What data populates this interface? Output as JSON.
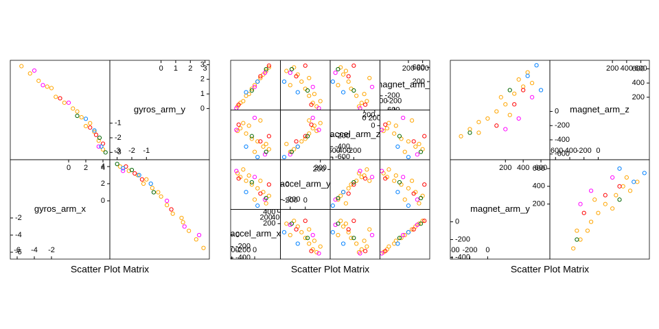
{
  "chart_data": [
    {
      "type": "splom",
      "xlabel": "Scatter Plot Matrix",
      "variables": [
        {
          "name": "gyros_arm_x",
          "lim": [
            -6.8,
            4.8
          ],
          "ticks": [
            -6,
            -4,
            -2,
            0,
            2,
            4
          ]
        },
        {
          "name": "gyros_arm_y",
          "lim": [
            -3.5,
            3.3
          ],
          "ticks": [
            -3,
            -2,
            -1,
            0,
            1,
            2,
            3
          ]
        }
      ],
      "series": [
        {
          "color": "#ffa500",
          "values": [
            [
              -5.5,
              2.9
            ],
            [
              -4.5,
              2.4
            ],
            [
              -3.5,
              1.9
            ],
            [
              -2.5,
              1.5
            ],
            [
              -1.5,
              0.8
            ],
            [
              -0.5,
              0.4
            ],
            [
              0.5,
              0
            ],
            [
              1.5,
              -0.6
            ],
            [
              2.5,
              -1
            ],
            [
              3,
              -1.6
            ],
            [
              3.5,
              -2.2
            ],
            [
              4,
              -2.8
            ],
            [
              -2,
              1.4
            ],
            [
              1,
              -0.2
            ],
            [
              2,
              -1.2
            ]
          ]
        },
        {
          "color": "#ff0000",
          "values": [
            [
              2.5,
              -1.3
            ],
            [
              3.2,
              -1.8
            ],
            [
              -1,
              0.7
            ],
            [
              4,
              -2.4
            ]
          ]
        },
        {
          "color": "#ff00ff",
          "values": [
            [
              -4,
              2.6
            ],
            [
              -3,
              1.6
            ],
            [
              3.5,
              -2.6
            ],
            [
              0,
              0.4
            ]
          ]
        },
        {
          "color": "#0080ff",
          "values": [
            [
              2,
              -0.7
            ],
            [
              3,
              -1.5
            ],
            [
              3.8,
              -2.6
            ]
          ]
        },
        {
          "color": "#006400",
          "values": [
            [
              4.3,
              -3
            ],
            [
              3.6,
              -2
            ],
            [
              1,
              -0.5
            ]
          ]
        }
      ]
    },
    {
      "type": "splom",
      "xlabel": "Scatter Plot Matrix",
      "variables": [
        {
          "name": "accel_arm_x",
          "lim": [
            -420,
            450
          ],
          "ticks": [
            -400,
            -200,
            0,
            200,
            400
          ]
        },
        {
          "name": "accel_arm_y",
          "lim": [
            -330,
            330
          ],
          "ticks": [
            -200,
            0,
            200
          ]
        },
        {
          "name": "accel_arm_z",
          "lim": [
            -650,
            300
          ],
          "ticks": [
            -600,
            -400,
            -200,
            0,
            200
          ]
        },
        {
          "name": "magnet_arm_x",
          "lim": [
            -600,
            800
          ],
          "ticks": [
            -600,
            -200,
            200,
            600
          ]
        }
      ],
      "series": [
        {
          "color": "#ffa500",
          "values": [
            [
              -300,
              150,
              -100,
              -500
            ],
            [
              -250,
              100,
              -50,
              -400
            ],
            [
              -150,
              50,
              -150,
              -200
            ],
            [
              -50,
              0,
              -250,
              0
            ],
            [
              50,
              -50,
              -300,
              200
            ],
            [
              150,
              -100,
              -400,
              400
            ],
            [
              250,
              -150,
              -450,
              600
            ],
            [
              -200,
              200,
              50,
              -350
            ],
            [
              0,
              -200,
              -500,
              100
            ],
            [
              100,
              50,
              100,
              300
            ],
            [
              -100,
              120,
              0,
              -150
            ],
            [
              200,
              -250,
              -350,
              500
            ]
          ]
        },
        {
          "color": "#ff0000",
          "values": [
            [
              -280,
              80,
              20,
              -450
            ],
            [
              100,
              -120,
              -300,
              350
            ],
            [
              250,
              0,
              -200,
              650
            ]
          ]
        },
        {
          "color": "#ff00ff",
          "values": [
            [
              -320,
              180,
              -80,
              -550
            ],
            [
              180,
              -200,
              -550,
              450
            ],
            [
              0,
              100,
              150,
              50
            ]
          ]
        },
        {
          "color": "#0080ff",
          "values": [
            [
              50,
              -280,
              -600,
              200
            ],
            [
              -150,
              -100,
              -400,
              -100
            ]
          ]
        },
        {
          "color": "#006400",
          "values": [
            [
              200,
              -180,
              -500,
              550
            ],
            [
              -50,
              30,
              -200,
              -50
            ]
          ]
        }
      ]
    },
    {
      "type": "splom",
      "xlabel": "Scatter Plot Matrix",
      "variables": [
        {
          "name": "magnet_arm_y",
          "lim": [
            -420,
            700
          ],
          "ticks": [
            -400,
            -200,
            0,
            200,
            400,
            600
          ]
        },
        {
          "name": "magnet_arm_z",
          "lim": [
            -680,
            720
          ],
          "ticks": [
            -600,
            -400,
            -200,
            0,
            200,
            400,
            600
          ]
        }
      ],
      "series": [
        {
          "color": "#ffa500",
          "values": [
            [
              -300,
              -350
            ],
            [
              -200,
              -250
            ],
            [
              -100,
              -150
            ],
            [
              0,
              -100
            ],
            [
              100,
              0
            ],
            [
              200,
              100
            ],
            [
              300,
              250
            ],
            [
              400,
              350
            ],
            [
              500,
              400
            ],
            [
              -100,
              -300
            ],
            [
              250,
              -50
            ],
            [
              150,
              200
            ],
            [
              350,
              450
            ],
            [
              450,
              550
            ]
          ]
        },
        {
          "color": "#ff0000",
          "values": [
            [
              100,
              -200
            ],
            [
              300,
              100
            ],
            [
              400,
              300
            ]
          ]
        },
        {
          "color": "#ff00ff",
          "values": [
            [
              200,
              -250
            ],
            [
              350,
              -100
            ],
            [
              500,
              200
            ]
          ]
        },
        {
          "color": "#0080ff",
          "values": [
            [
              550,
              650
            ],
            [
              600,
              300
            ],
            [
              450,
              500
            ]
          ]
        },
        {
          "color": "#006400",
          "values": [
            [
              -200,
              -300
            ],
            [
              250,
              300
            ]
          ]
        }
      ]
    }
  ]
}
